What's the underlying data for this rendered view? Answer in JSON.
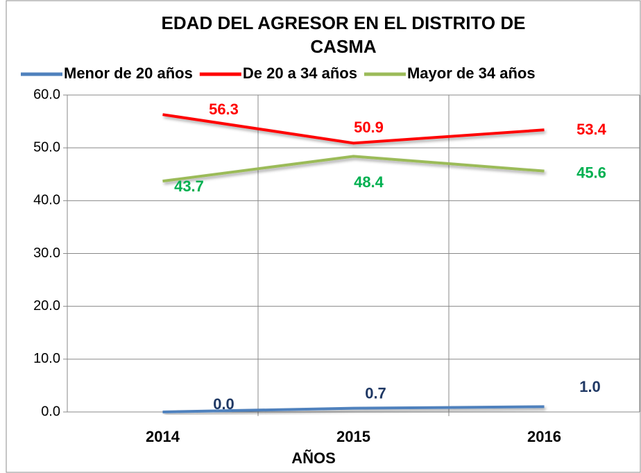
{
  "chart_data": {
    "type": "line",
    "title": "EDAD DEL AGRESOR EN EL DISTRITO DE CASMA",
    "x_label": "AÑOS",
    "categories": [
      "2014",
      "2015",
      "2016"
    ],
    "series": [
      {
        "name": "Menor de 20 años",
        "color": "#4f81bd",
        "label_color": "#1f3864",
        "values": [
          0,
          0.7,
          1
        ],
        "value_labels": [
          "0.0",
          "0.7",
          "1.0"
        ]
      },
      {
        "name": "De 20 a 34 años",
        "color": "#ff0000",
        "label_color": "#ff0000",
        "values": [
          56.3,
          50.9,
          53.4
        ]
      },
      {
        "name": "Mayor de 34 años",
        "color": "#9bbb59",
        "label_color": "#00b050",
        "values": [
          43.7,
          48.4,
          45.6
        ]
      }
    ],
    "ylim": [
      0,
      60
    ],
    "yticks": [
      {
        "value": 0,
        "label": "0.0"
      },
      {
        "value": 10,
        "label": "10.0"
      },
      {
        "value": 20,
        "label": "20.0"
      },
      {
        "value": 30,
        "label": "30.0"
      },
      {
        "value": 40,
        "label": "40.0"
      },
      {
        "value": 50,
        "label": "50.0"
      },
      {
        "value": 60,
        "label": "60.0"
      }
    ],
    "grid": true,
    "legend": "top"
  }
}
